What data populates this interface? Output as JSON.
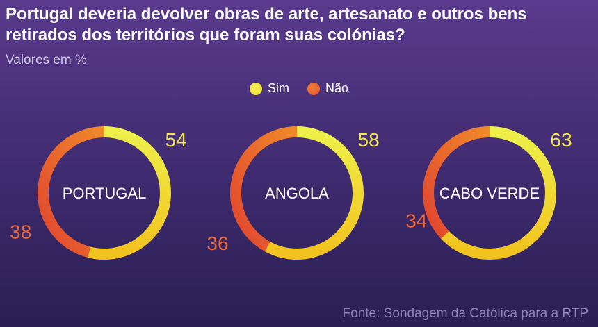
{
  "title_bold": "Portugal deveria devolver",
  "title_rest": " obras de arte, artesanato e outros bens retirados dos territórios que foram suas colónias?",
  "subtitle": "Valores em %",
  "source": "Fonte: Sondagem da Católica para a RTP",
  "colors": {
    "sim": "#f2ea3c",
    "nao": "#ea5a33",
    "sim_value": "#f2e64a",
    "nao_value": "#ea6a3f"
  },
  "chart_data": {
    "type": "pie",
    "subtype": "donut",
    "title": "Portugal deveria devolver obras de arte, artesanato e outros bens retirados dos territórios que foram suas colónias?",
    "subtitle": "Valores em %",
    "legend": [
      "Sim",
      "Não"
    ],
    "legend_position": "top-center",
    "categories": [
      "PORTUGAL",
      "ANGOLA",
      "CABO VERDE"
    ],
    "series": [
      {
        "name": "Sim",
        "values": [
          54,
          58,
          63
        ]
      },
      {
        "name": "Não",
        "values": [
          38,
          36,
          34
        ]
      }
    ]
  }
}
